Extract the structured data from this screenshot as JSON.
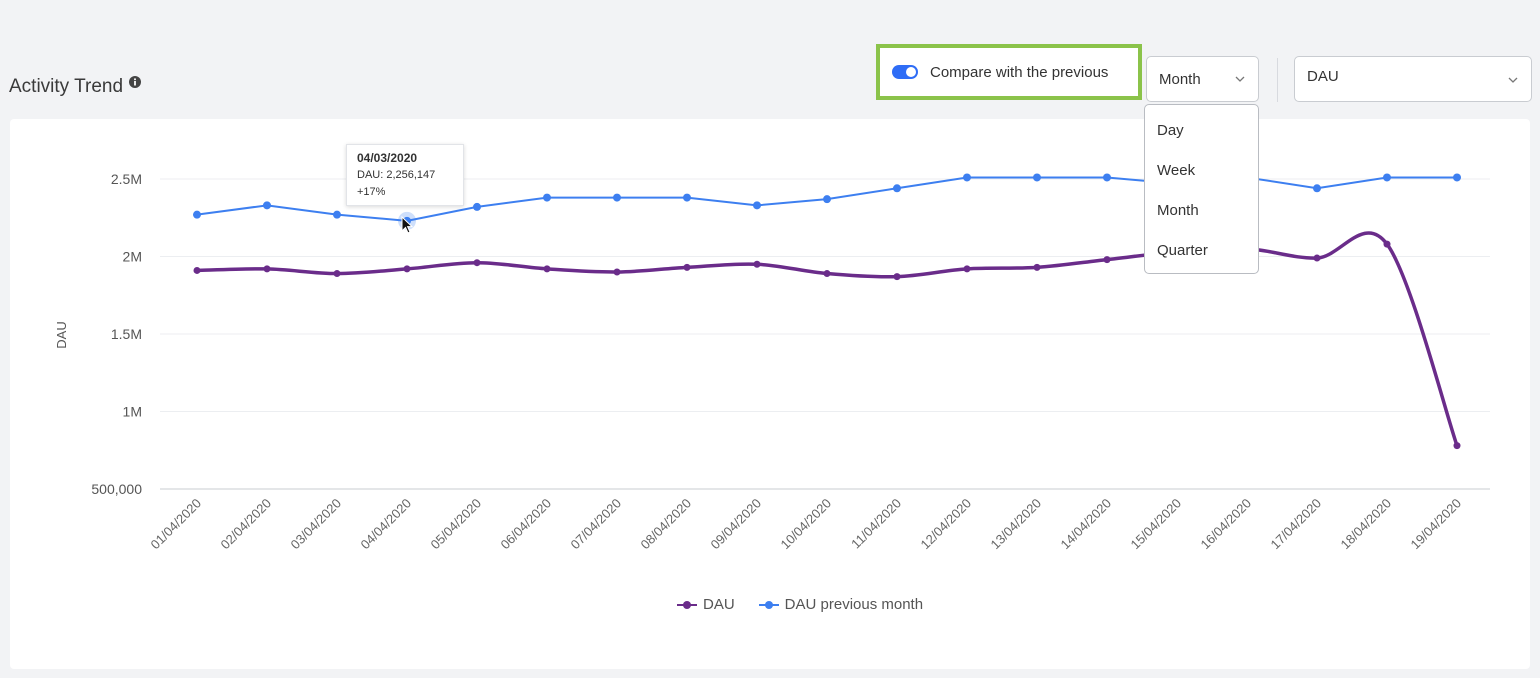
{
  "section": {
    "title": "Activity Trend",
    "info_icon": "info-icon"
  },
  "compare": {
    "label": "Compare with the previous",
    "enabled": true
  },
  "period_select": {
    "value": "Month",
    "options": [
      "Day",
      "Week",
      "Month",
      "Quarter"
    ]
  },
  "metric_select": {
    "value": "DAU"
  },
  "tooltip": {
    "date": "04/03/2020",
    "value_line": "DAU: 2,256,147",
    "change": "+17%"
  },
  "colors": {
    "dau": "#6a2c8a",
    "previous": "#3d7ff0",
    "highlight": "#8bc34a",
    "toggle": "#2f6df6"
  },
  "chart_data": {
    "type": "line",
    "ylabel": "DAU",
    "xlabel": "",
    "ylim": [
      500000,
      2500000
    ],
    "y_ticks": [
      {
        "value": 2500000,
        "label": "2.5M"
      },
      {
        "value": 2000000,
        "label": "2M"
      },
      {
        "value": 1500000,
        "label": "1.5M"
      },
      {
        "value": 1000000,
        "label": "1M"
      },
      {
        "value": 500000,
        "label": "500,000"
      }
    ],
    "grid": true,
    "legend_position": "bottom",
    "categories": [
      "01/04/2020",
      "02/04/2020",
      "03/04/2020",
      "04/04/2020",
      "05/04/2020",
      "06/04/2020",
      "07/04/2020",
      "08/04/2020",
      "09/04/2020",
      "10/04/2020",
      "11/04/2020",
      "12/04/2020",
      "13/04/2020",
      "14/04/2020",
      "15/04/2020",
      "16/04/2020",
      "17/04/2020",
      "18/04/2020",
      "19/04/2020"
    ],
    "series": [
      {
        "name": "DAU",
        "values": [
          1910000,
          1920000,
          1890000,
          1920000,
          1960000,
          1920000,
          1900000,
          1930000,
          1950000,
          1890000,
          1870000,
          1920000,
          1930000,
          1980000,
          2030000,
          2050000,
          1990000,
          2080000,
          780000
        ]
      },
      {
        "name": "DAU previous month",
        "values": [
          2270000,
          2330000,
          2270000,
          2230000,
          2320000,
          2380000,
          2380000,
          2380000,
          2330000,
          2370000,
          2440000,
          2510000,
          2510000,
          2510000,
          2470000,
          2510000,
          2440000,
          2510000,
          2510000
        ]
      }
    ]
  }
}
